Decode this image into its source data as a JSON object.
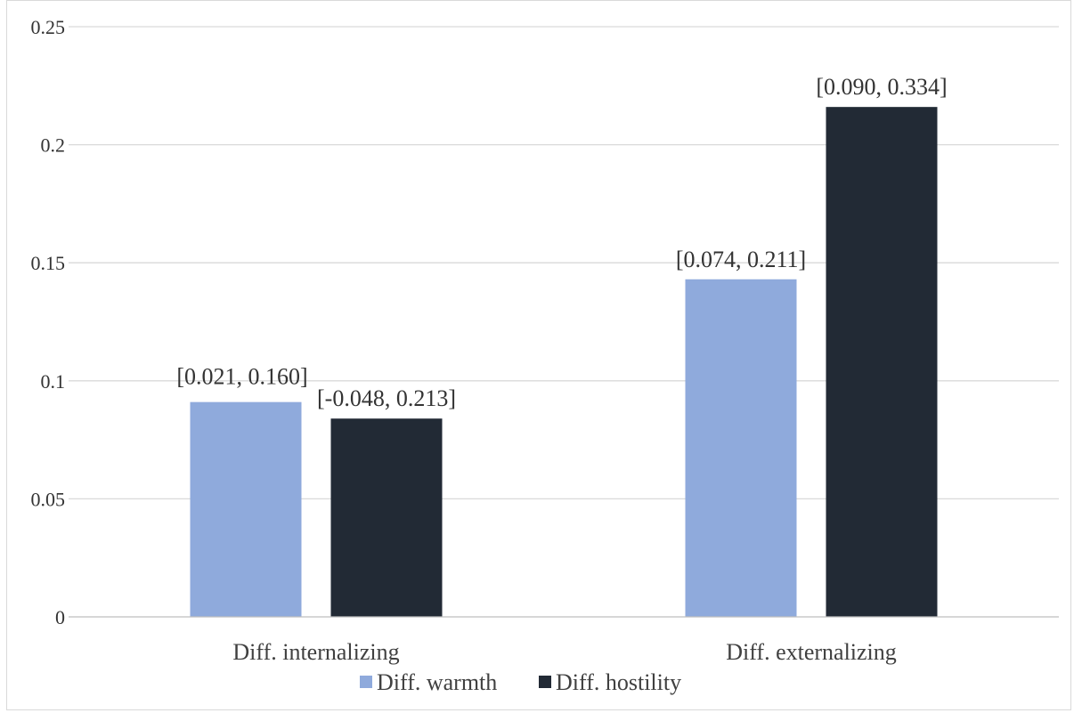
{
  "chart_data": {
    "type": "bar",
    "categories": [
      "Diff. internalizing",
      "Diff. externalizing"
    ],
    "series": [
      {
        "name": "Diff. warmth",
        "color": "#8FAADC",
        "values": [
          0.091,
          0.143
        ],
        "labels": [
          "[0.021, 0.160]",
          "[0.074, 0.211]"
        ]
      },
      {
        "name": "Diff. hostility",
        "color": "#222A35",
        "values": [
          0.084,
          0.216
        ],
        "labels": [
          "[-0.048, 0.213]",
          "[0.090, 0.334]"
        ]
      }
    ],
    "y_ticks": [
      "0",
      "0.05",
      "0.1",
      "0.15",
      "0.2",
      "0.25"
    ],
    "ylim": [
      0,
      0.25
    ],
    "grid": true,
    "legend_position": "bottom"
  }
}
